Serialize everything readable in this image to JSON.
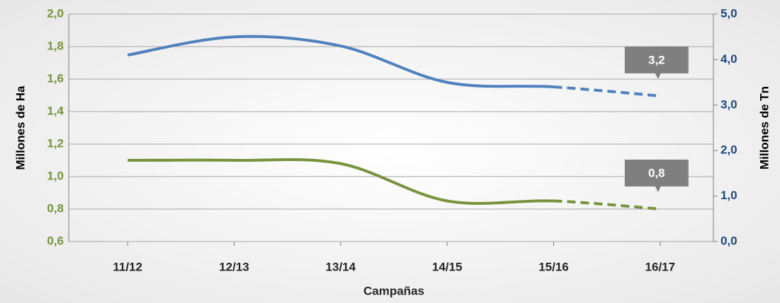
{
  "chart_data": {
    "type": "line",
    "x_label": "Campañas",
    "y_label": "Millones de Ha",
    "y2_label": "Millones de Tn",
    "categories": [
      "11/12",
      "12/13",
      "13/14",
      "14/15",
      "15/16",
      "16/17"
    ],
    "series": [
      {
        "color": "#4f81bd",
        "axis": "y2",
        "values": [
          4.1,
          4.5,
          4.3,
          3.5,
          3.4,
          3.2
        ],
        "value_labels": [
          null,
          null,
          null,
          null,
          null,
          "3,2"
        ],
        "dashed_from": "15/16"
      },
      {
        "color": "#77933c",
        "axis": "y",
        "values": [
          1.1,
          1.1,
          1.08,
          0.85,
          0.85,
          0.8
        ],
        "value_labels": [
          null,
          null,
          null,
          null,
          null,
          "0,8"
        ],
        "dashed_from": "15/16"
      }
    ],
    "ylim": [
      0.6,
      2.0
    ],
    "yticks": [
      {
        "value": 0.6,
        "label": "0,6"
      },
      {
        "value": 0.8,
        "label": "0,8"
      },
      {
        "value": 1.0,
        "label": "1,0"
      },
      {
        "value": 1.2,
        "label": "1,2"
      },
      {
        "value": 1.4,
        "label": "1,4"
      },
      {
        "value": 1.6,
        "label": "1,6"
      },
      {
        "value": 1.8,
        "label": "1,8"
      },
      {
        "value": 2.0,
        "label": "2,0"
      }
    ],
    "y2lim": [
      0,
      5
    ],
    "y2ticks": [
      {
        "value": 0,
        "label": "0,0"
      },
      {
        "value": 1,
        "label": "1,0"
      },
      {
        "value": 2,
        "label": "2,0"
      },
      {
        "value": 3,
        "label": "3,0"
      },
      {
        "value": 4,
        "label": "4,0"
      },
      {
        "value": 5,
        "label": "5,0"
      }
    ],
    "ytick_color": "#77933c",
    "y2tick_color": "#1f497d",
    "grid": true
  }
}
